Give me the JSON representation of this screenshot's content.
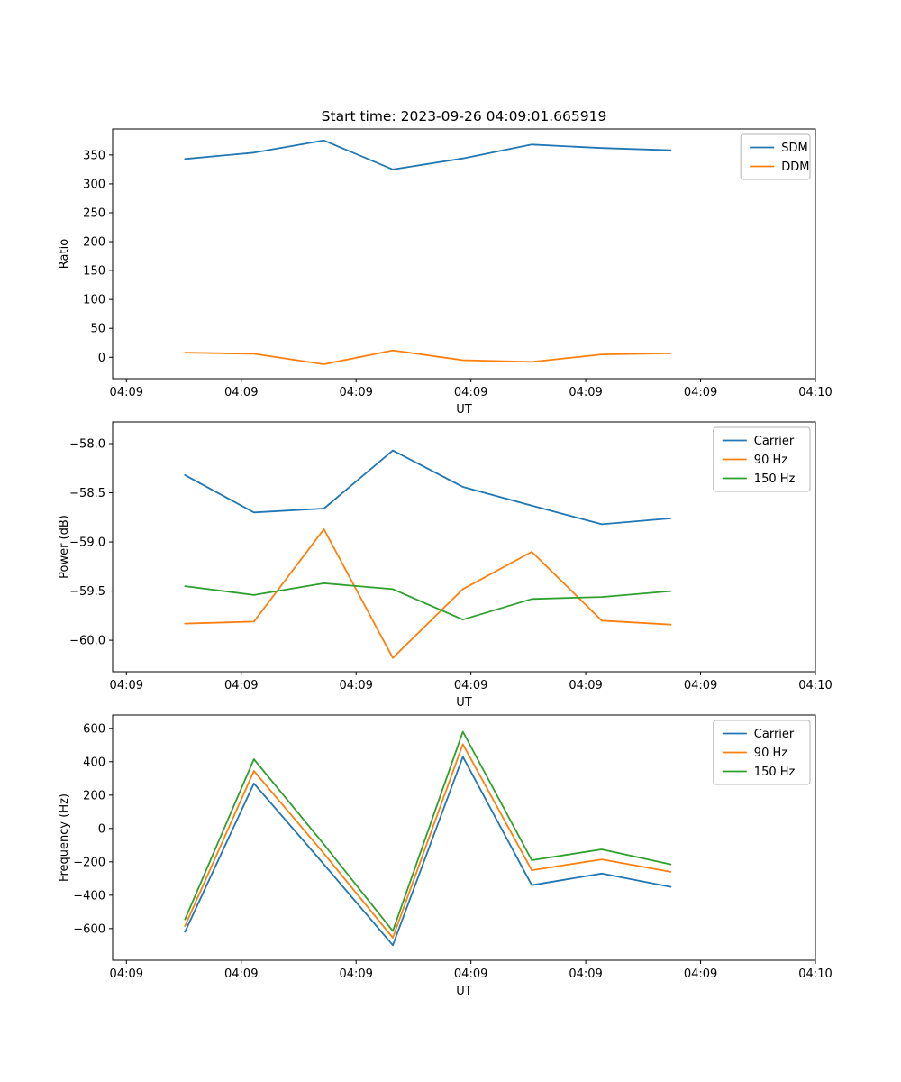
{
  "figure": {
    "title": "Start time: 2023-09-26 04:09:01.665919",
    "background": "#ffffff"
  },
  "colors": {
    "blue": "#1f77b4",
    "orange": "#ff7f0e",
    "green": "#2ca02c"
  },
  "chart_data": [
    {
      "type": "line",
      "title": "",
      "xlabel": "UT",
      "ylabel": "Ratio",
      "xlim": [
        -1.2,
        60
      ],
      "ylim": [
        -37,
        395
      ],
      "grid": false,
      "legend_position": "upper right",
      "x": [
        5.1,
        11.1,
        17.2,
        23.2,
        29.3,
        35.3,
        41.4,
        47.4
      ],
      "xticks": {
        "values": [
          0,
          10,
          20,
          30,
          40,
          50,
          60
        ],
        "labels": [
          "04:09",
          "04:09",
          "04:09",
          "04:09",
          "04:09",
          "04:09",
          "04:10"
        ]
      },
      "yticks": {
        "values": [
          0,
          50,
          100,
          150,
          200,
          250,
          300,
          350
        ],
        "labels": [
          "0",
          "50",
          "100",
          "150",
          "200",
          "250",
          "300",
          "350"
        ]
      },
      "series": [
        {
          "name": "SDM",
          "color": "#1f77b4",
          "values": [
            343,
            354,
            375,
            325,
            344,
            368,
            362,
            358
          ]
        },
        {
          "name": "DDM",
          "color": "#ff7f0e",
          "values": [
            8,
            6,
            -12,
            12,
            -5,
            -8,
            5,
            7
          ]
        }
      ]
    },
    {
      "type": "line",
      "title": "",
      "xlabel": "UT",
      "ylabel": "Power (dB)",
      "xlim": [
        -1.2,
        60
      ],
      "ylim": [
        -60.32,
        -57.78
      ],
      "grid": false,
      "legend_position": "upper right",
      "x": [
        5.1,
        11.1,
        17.2,
        23.2,
        29.3,
        35.3,
        41.4,
        47.4
      ],
      "xticks": {
        "values": [
          0,
          10,
          20,
          30,
          40,
          50,
          60
        ],
        "labels": [
          "04:09",
          "04:09",
          "04:09",
          "04:09",
          "04:09",
          "04:09",
          "04:10"
        ]
      },
      "yticks": {
        "values": [
          -58.0,
          -58.5,
          -59.0,
          -59.5,
          -60.0
        ],
        "labels": [
          "−58.0",
          "−58.5",
          "−59.0",
          "−59.5",
          "−60.0"
        ]
      },
      "series": [
        {
          "name": "Carrier",
          "color": "#1f77b4",
          "values": [
            -58.32,
            -58.7,
            -58.66,
            -58.07,
            -58.44,
            -58.63,
            -58.82,
            -58.76
          ]
        },
        {
          "name": "90 Hz",
          "color": "#ff7f0e",
          "values": [
            -59.83,
            -59.81,
            -58.87,
            -60.18,
            -59.48,
            -59.1,
            -59.8,
            -59.84
          ]
        },
        {
          "name": "150 Hz",
          "color": "#2ca02c",
          "values": [
            -59.45,
            -59.54,
            -59.42,
            -59.48,
            -59.79,
            -59.58,
            -59.56,
            -59.5
          ]
        }
      ]
    },
    {
      "type": "line",
      "title": "",
      "xlabel": "UT",
      "ylabel": "Frequency (Hz)",
      "xlim": [
        -1.2,
        60
      ],
      "ylim": [
        -790,
        680
      ],
      "grid": false,
      "legend_position": "upper right",
      "x": [
        5.1,
        11.1,
        17.2,
        23.2,
        29.3,
        35.3,
        41.4,
        47.4
      ],
      "xticks": {
        "values": [
          0,
          10,
          20,
          30,
          40,
          50,
          60
        ],
        "labels": [
          "04:09",
          "04:09",
          "04:09",
          "04:09",
          "04:09",
          "04:09",
          "04:10"
        ]
      },
      "yticks": {
        "values": [
          600,
          400,
          200,
          0,
          -200,
          -400,
          -600
        ],
        "labels": [
          "600",
          "400",
          "200",
          "0",
          "−200",
          "−400",
          "−600"
        ]
      },
      "series": [
        {
          "name": "Carrier",
          "color": "#1f77b4",
          "values": [
            -620,
            270,
            -215,
            -700,
            430,
            -340,
            -270,
            -350
          ]
        },
        {
          "name": "90 Hz",
          "color": "#ff7f0e",
          "values": [
            -585,
            345,
            -150,
            -655,
            505,
            -250,
            -185,
            -260
          ]
        },
        {
          "name": "150 Hz",
          "color": "#2ca02c",
          "values": [
            -545,
            415,
            -95,
            -615,
            580,
            -190,
            -125,
            -215
          ]
        }
      ]
    }
  ]
}
